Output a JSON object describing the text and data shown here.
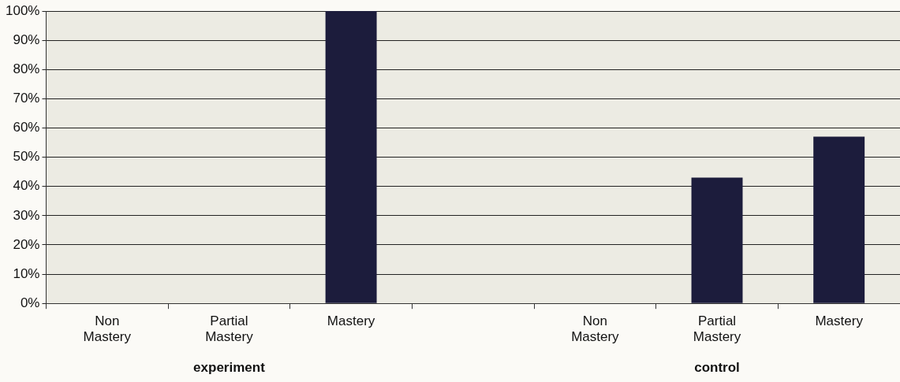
{
  "chart_data": {
    "type": "bar",
    "categories": [
      "Non Mastery",
      "Partial Mastery",
      "Mastery",
      null,
      "Non Mastery",
      "Partial Mastery",
      "Mastery"
    ],
    "values": [
      0,
      0,
      100,
      null,
      0,
      43,
      57
    ],
    "color": "#1c1c3c",
    "ylim": [
      0,
      100
    ],
    "yticks": [
      {
        "value": 0,
        "label": "0%"
      },
      {
        "value": 10,
        "label": "10%"
      },
      {
        "value": 20,
        "label": "20%"
      },
      {
        "value": 30,
        "label": "30%"
      },
      {
        "value": 40,
        "label": "40%"
      },
      {
        "value": 50,
        "label": "50%"
      },
      {
        "value": 60,
        "label": "60%"
      },
      {
        "value": 70,
        "label": "70%"
      },
      {
        "value": 80,
        "label": "80%"
      },
      {
        "value": 90,
        "label": "90%"
      },
      {
        "value": 100,
        "label": "100%"
      }
    ],
    "grid": "y",
    "legend": false,
    "annotations": [
      "experiment",
      "control"
    ]
  }
}
